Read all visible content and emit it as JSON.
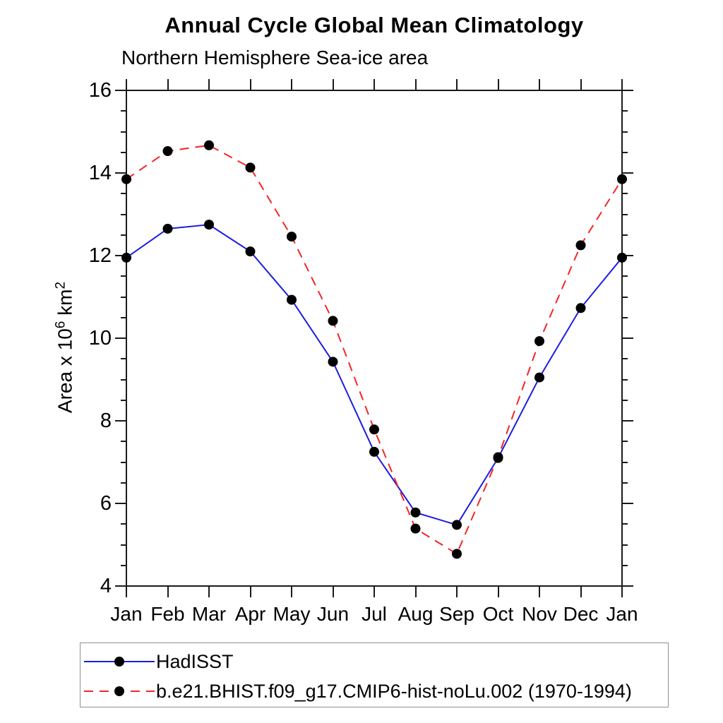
{
  "title": "Annual Cycle Global Mean Climatology",
  "subtitle": "Northern Hemisphere Sea-ice area",
  "ylabel_parts": {
    "prefix": "Area x 10",
    "sup1": "6",
    "mid": " km",
    "sup2": "2"
  },
  "colors": {
    "hadisst_line": "#1c1ce0",
    "model_line": "#f52525",
    "marker": "#000000",
    "axis": "#1a1a1a",
    "legend_border": "#909090"
  },
  "chart_data": {
    "type": "line",
    "title": "Annual Cycle Global Mean Climatology",
    "subtitle": "Northern Hemisphere Sea-ice area",
    "xlabel": "",
    "ylabel": "Area x 10^6 km^2",
    "x_categories": [
      "Jan",
      "Feb",
      "Mar",
      "Apr",
      "May",
      "Jun",
      "Jul",
      "Aug",
      "Sep",
      "Oct",
      "Nov",
      "Dec",
      "Jan"
    ],
    "ylim": [
      4,
      16
    ],
    "y_major_ticks": [
      4,
      6,
      8,
      10,
      12,
      14,
      16
    ],
    "y_minor_step": 0.5,
    "grid": false,
    "legend_position": "bottom-left-box",
    "series": [
      {
        "name": "HadISST",
        "style": "solid",
        "color": "#1c1ce0",
        "marker": "black-dot",
        "values": [
          11.95,
          12.65,
          12.75,
          12.1,
          10.93,
          9.43,
          7.25,
          5.78,
          5.48,
          7.1,
          9.05,
          10.73,
          11.95
        ]
      },
      {
        "name": "b.e21.BHIST.f09_g17.CMIP6-hist-noLu.002 (1970-1994)",
        "style": "dashed",
        "color": "#f52525",
        "marker": "black-dot",
        "values": [
          13.85,
          14.53,
          14.67,
          14.13,
          12.46,
          10.42,
          7.79,
          5.39,
          4.78,
          7.12,
          9.93,
          12.25,
          13.85
        ]
      }
    ]
  }
}
